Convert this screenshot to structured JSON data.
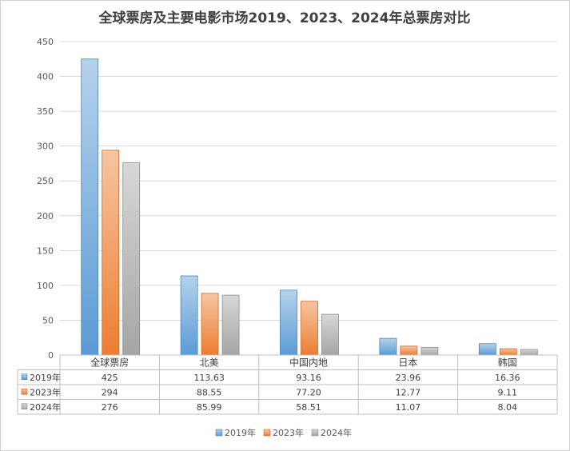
{
  "chart_data": {
    "type": "bar",
    "title": "全球票房及主要电影市场2019、2023、2024年总票房对比",
    "xlabel": "",
    "ylabel": "",
    "categories": [
      "全球票房",
      "北美",
      "中国内地",
      "日本",
      "韩国"
    ],
    "series": [
      {
        "name": "2019年",
        "values": [
          425,
          113.63,
          93.16,
          23.96,
          16.36
        ],
        "labels": [
          "425",
          "113.63",
          "93.16",
          "23.96",
          "16.36"
        ],
        "color": "#5b9bd5"
      },
      {
        "name": "2023年",
        "values": [
          294,
          88.55,
          77.2,
          12.77,
          9.11
        ],
        "labels": [
          "294",
          "88.55",
          "77.20",
          "12.77",
          "9.11"
        ],
        "color": "#ed7d31"
      },
      {
        "name": "2024年",
        "values": [
          276,
          85.99,
          58.51,
          11.07,
          8.04
        ],
        "labels": [
          "276",
          "85.99",
          "58.51",
          "11.07",
          "8.04"
        ],
        "color": "#a5a5a5"
      }
    ],
    "ylim": [
      0,
      450
    ],
    "yticks": [
      0,
      50,
      100,
      150,
      200,
      250,
      300,
      350,
      400,
      450
    ],
    "grid": true,
    "legend": "bottom",
    "data_table": true
  }
}
